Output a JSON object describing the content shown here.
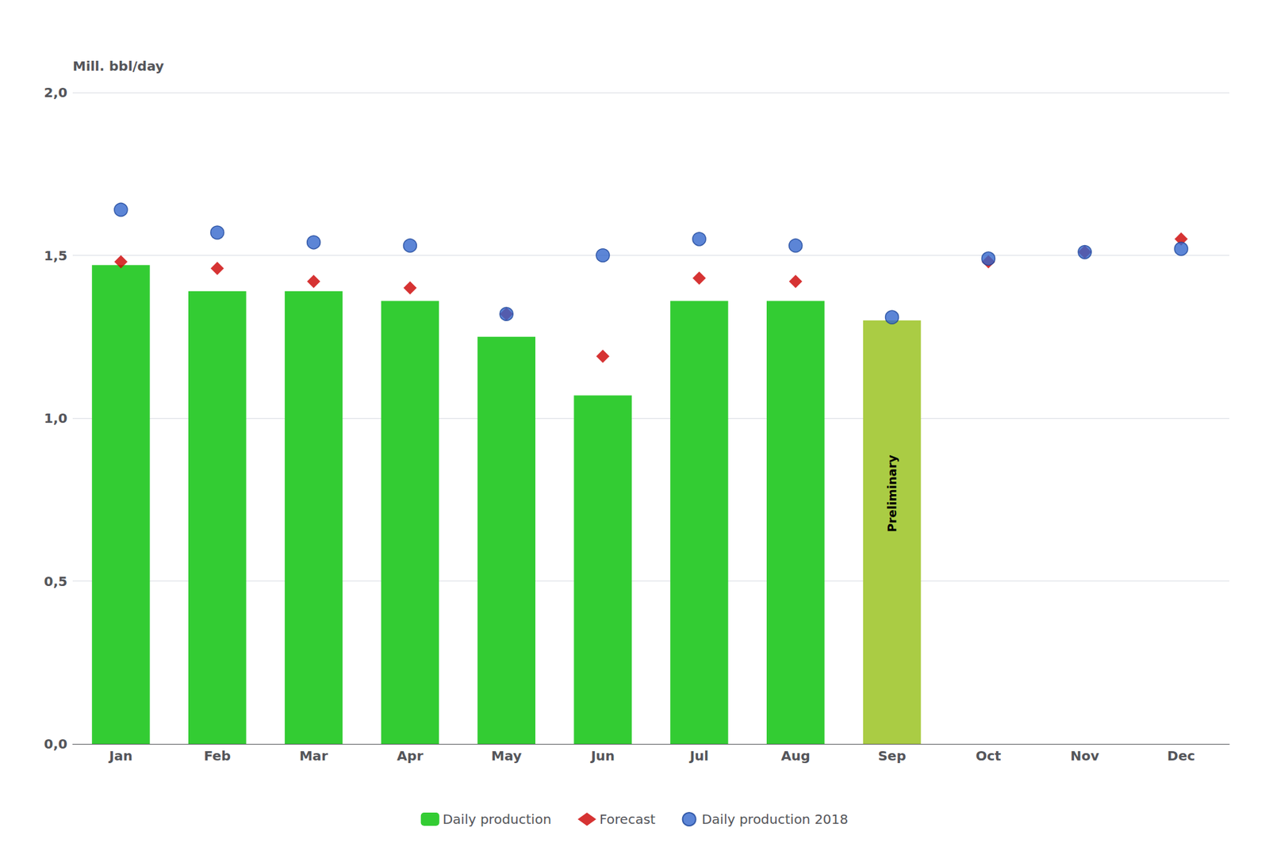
{
  "chart_data": {
    "type": "bar",
    "categories": [
      "Jan",
      "Feb",
      "Mar",
      "Apr",
      "May",
      "Jun",
      "Jul",
      "Aug",
      "Sep",
      "Oct",
      "Nov",
      "Dec"
    ],
    "series": [
      {
        "name": "Daily production",
        "type": "bar",
        "color": "#33cc33",
        "values": [
          1.47,
          1.39,
          1.39,
          1.36,
          1.25,
          1.07,
          1.36,
          1.36,
          1.3,
          null,
          null,
          null
        ],
        "colors": [
          "#33cc33",
          "#33cc33",
          "#33cc33",
          "#33cc33",
          "#33cc33",
          "#33cc33",
          "#33cc33",
          "#33cc33",
          "#aacc44",
          null,
          null,
          null
        ]
      },
      {
        "name": "Forecast",
        "type": "scatter",
        "marker": "diamond",
        "color": "#cc0000",
        "values": [
          1.48,
          1.46,
          1.42,
          1.4,
          1.32,
          1.19,
          1.43,
          1.42,
          null,
          1.48,
          1.51,
          1.55
        ]
      },
      {
        "name": "Daily production 2018",
        "type": "scatter",
        "marker": "circle",
        "color": "#3366cc",
        "values": [
          1.64,
          1.57,
          1.54,
          1.53,
          1.32,
          1.5,
          1.55,
          1.53,
          1.31,
          1.49,
          1.51,
          1.52
        ]
      }
    ],
    "ylabel": "Mill. bbl/day",
    "ylim": [
      0.0,
      2.0
    ],
    "yticks": [
      {
        "value": 0.0,
        "label": "0,0"
      },
      {
        "value": 0.5,
        "label": "0,5"
      },
      {
        "value": 1.0,
        "label": "1,0"
      },
      {
        "value": 1.5,
        "label": "1,5"
      },
      {
        "value": 2.0,
        "label": "2,0"
      }
    ],
    "annotations": [
      {
        "text": "Preliminary",
        "x": "Sep",
        "y": 0.65
      }
    ],
    "grid": true,
    "legend": "bottom"
  }
}
